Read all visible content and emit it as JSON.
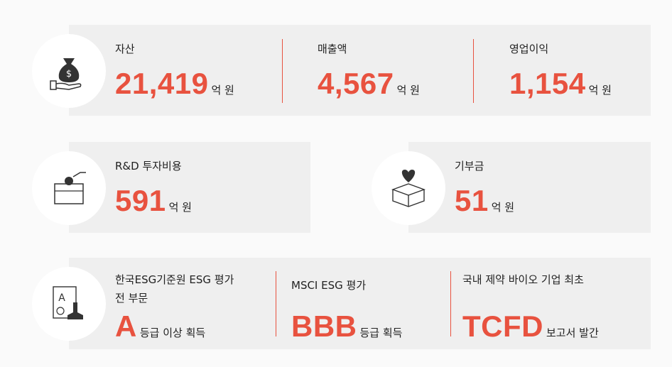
{
  "financials": [
    {
      "label": "자산",
      "value": "21,419",
      "unit": "억 원"
    },
    {
      "label": "매출액",
      "value": "4,567",
      "unit": "억 원"
    },
    {
      "label": "영업이익",
      "value": "1,154",
      "unit": "억 원"
    }
  ],
  "rnd": {
    "label": "R&D 투자비용",
    "value": "591",
    "unit": "억 원"
  },
  "donation": {
    "label": "기부금",
    "value": "51",
    "unit": "억 원"
  },
  "ratings": [
    {
      "label": "한국ESG기준원 ESG 평가",
      "label2": "전 부문",
      "value": "A",
      "unit": "등급 이상 획득"
    },
    {
      "label": "MSCI ESG 평가",
      "value": "BBB",
      "unit": "등급 획득"
    },
    {
      "label": "국내 제약 바이오 기업 최초",
      "value": "TCFD",
      "unit": "보고서 발간"
    }
  ]
}
